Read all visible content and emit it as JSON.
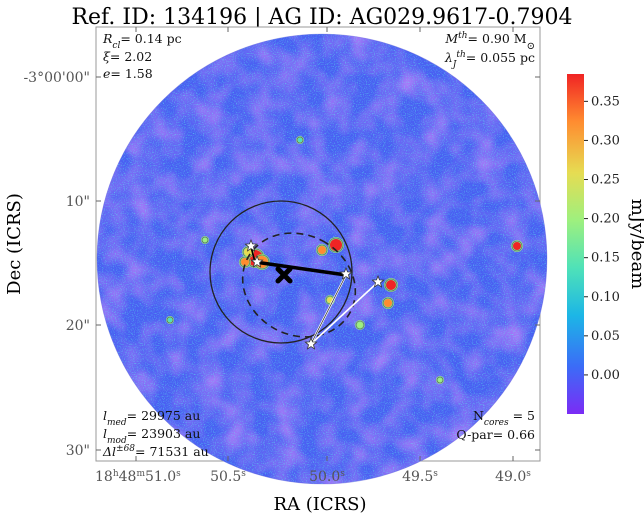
{
  "chart_data": {
    "type": "heatmap",
    "title": "Ref. ID: 134196 | AG ID: AG029.9617-0.7904",
    "xlabel": "RA (ICRS)",
    "ylabel": "Dec (ICRS)",
    "x_ticks": [
      {
        "label": "18h48m51.0s",
        "h": "18",
        "m": "48",
        "s": "51.0"
      },
      {
        "label": "50.5s",
        "v": "50.5"
      },
      {
        "label": "50.0s",
        "v": "50.0"
      },
      {
        "label": "49.5s",
        "v": "49.5"
      },
      {
        "label": "49.0s",
        "v": "49.0"
      }
    ],
    "y_ticks": [
      "-3°00'00\"",
      "10\"",
      "20\"",
      "30\""
    ],
    "colorbar": {
      "label": "mJy/beam",
      "colormap": "rainbow",
      "range": [
        -0.05,
        0.385
      ],
      "ticks": [
        "0.35",
        "0.30",
        "0.25",
        "0.20",
        "0.15",
        "0.10",
        "0.05",
        "0.00"
      ],
      "colors": [
        "#7b2cf5",
        "#3b6cf7",
        "#1cb6e6",
        "#4fe2b8",
        "#9ef07e",
        "#e6dc52",
        "#ff8c30",
        "#f02424"
      ]
    },
    "annotations": {
      "top_left": [
        {
          "var": "R",
          "sub": "cl",
          "value": "= 0.14 pc"
        },
        {
          "var": "ξ",
          "value": "= 2.02"
        },
        {
          "var": "e",
          "value": "= 1.58"
        }
      ],
      "top_right": [
        {
          "var": "M",
          "sup": "th",
          "value": "= 0.90 M",
          "unit": "⊙"
        },
        {
          "var": "λ",
          "sub": "J",
          "sup": "th",
          "value": "= 0.055 pc"
        }
      ],
      "bottom_left": [
        {
          "var": "l",
          "sub": "med",
          "value": "= 29975 au"
        },
        {
          "var": "l",
          "sub": "mod",
          "value": "= 23903 au"
        },
        {
          "var": "Δl",
          "sup": "±68",
          "value": "= 71531 au"
        }
      ],
      "bottom_right": [
        {
          "var": "N",
          "sub": "cores",
          "value": " = 5"
        },
        {
          "var": "",
          "value": "Q-par= 0.66"
        }
      ]
    },
    "markers": {
      "cores": 5,
      "centroid_marker": "x-cross",
      "core_marker": "star"
    }
  }
}
